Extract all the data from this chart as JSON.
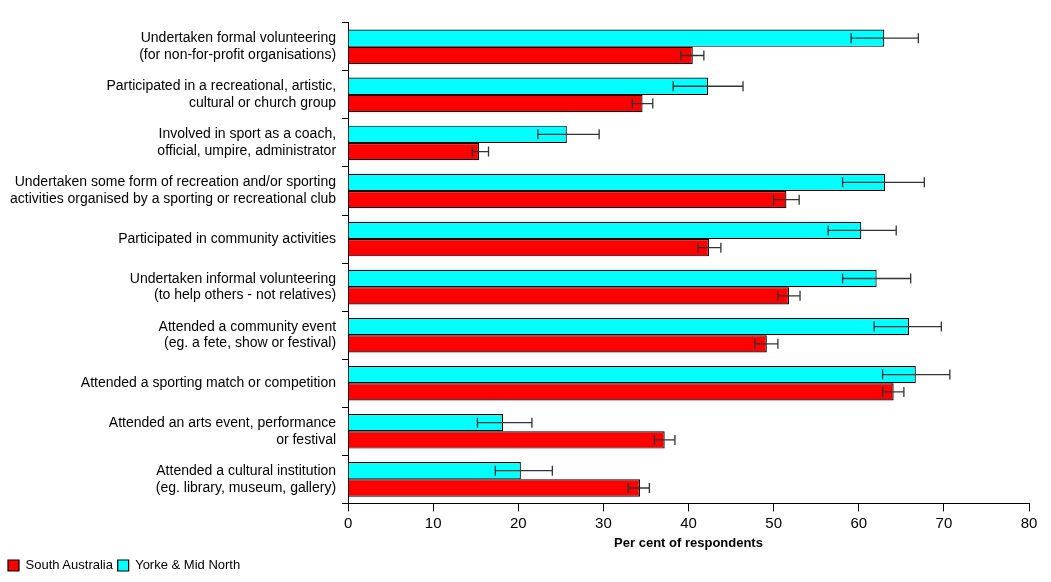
{
  "chart_data": {
    "type": "bar",
    "orientation": "horizontal",
    "xlabel": "Per cent of respondents",
    "categories": [
      "Undertaken formal volunteering\n(for non-for-profit organisations)",
      "Participated in a recreational, artistic,\ncultural or church group",
      "Involved in sport as a coach,\nofficial, umpire, administrator",
      "Undertaken some form of recreation and/or sporting\nactivities organised by a sporting or recreational club",
      "Participated in community activities",
      "Undertaken informal volunteering\n(to help others - not relatives)",
      "Attended a community event\n(eg. a fete, show or festival)",
      "Attended a sporting match or competition",
      "Attended an arts event, performance\nor festival",
      "Attended a cultural institution\n(eg. library, museum, gallery)"
    ],
    "series": [
      {
        "name": "Yorke & Mid North",
        "color": "#00ffff",
        "values": [
          63.0,
          42.3,
          25.7,
          63.1,
          60.3,
          62.1,
          65.9,
          66.7,
          18.2,
          20.3
        ],
        "errors": [
          [
            59.1,
            67.0
          ],
          [
            38.2,
            46.4
          ],
          [
            22.3,
            29.5
          ],
          [
            58.1,
            67.7
          ],
          [
            56.4,
            64.4
          ],
          [
            58.1,
            66.1
          ],
          [
            61.8,
            69.7
          ],
          [
            62.8,
            70.7
          ],
          [
            15.2,
            21.6
          ],
          [
            17.3,
            24.0
          ]
        ]
      },
      {
        "name": "South Australia",
        "color": "#ff0000",
        "values": [
          40.5,
          34.6,
          15.4,
          51.5,
          42.4,
          51.8,
          49.2,
          64.1,
          37.2,
          34.3
        ],
        "errors": [
          [
            39.1,
            41.8
          ],
          [
            33.4,
            35.8
          ],
          [
            14.6,
            16.5
          ],
          [
            50.0,
            53.0
          ],
          [
            41.1,
            43.8
          ],
          [
            50.5,
            53.1
          ],
          [
            47.8,
            50.5
          ],
          [
            62.8,
            65.3
          ],
          [
            36.0,
            38.4
          ],
          [
            32.9,
            35.4
          ]
        ]
      }
    ],
    "xlim": [
      0,
      80
    ],
    "xticks": [
      0,
      10,
      20,
      30,
      40,
      50,
      60,
      70,
      80
    ],
    "grid": false,
    "legend": "bottom left"
  }
}
